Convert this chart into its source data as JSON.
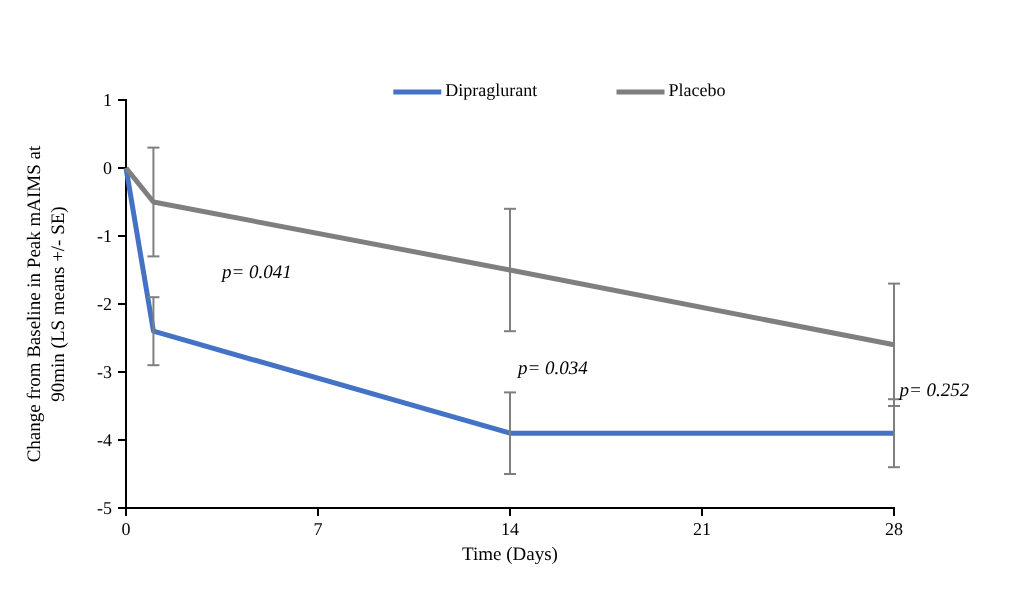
{
  "chart_data": {
    "type": "line",
    "xlabel": "Time (Days)",
    "ylabel": "Change from Baseline in Peak mAIMS at 90min (LS means +/- SE)",
    "x": [
      0,
      1,
      14,
      28
    ],
    "series": [
      {
        "name": "Dipraglurant",
        "color": "#4472c4",
        "values": [
          0,
          -2.4,
          -3.9,
          -3.9
        ],
        "errors": [
          null,
          0.5,
          0.6,
          0.5
        ]
      },
      {
        "name": "Placebo",
        "color": "#7f7f7f",
        "values": [
          0,
          -0.5,
          -1.5,
          -2.6
        ],
        "errors": [
          null,
          0.8,
          0.9,
          0.9
        ]
      }
    ],
    "xlim": [
      0,
      28
    ],
    "xticks": [
      0,
      7,
      14,
      21,
      28
    ],
    "ylim": [
      -5,
      1
    ],
    "yticks": [
      -5,
      -4,
      -3,
      -2,
      -1,
      0,
      1
    ],
    "grid": false,
    "legend": "top",
    "marker": "none",
    "annotations": [
      "p= 0.041",
      "p= 0.034",
      {
        "text": "p= 0.252",
        "x": 28.2,
        "y": -3.3
      }
    ]
  }
}
